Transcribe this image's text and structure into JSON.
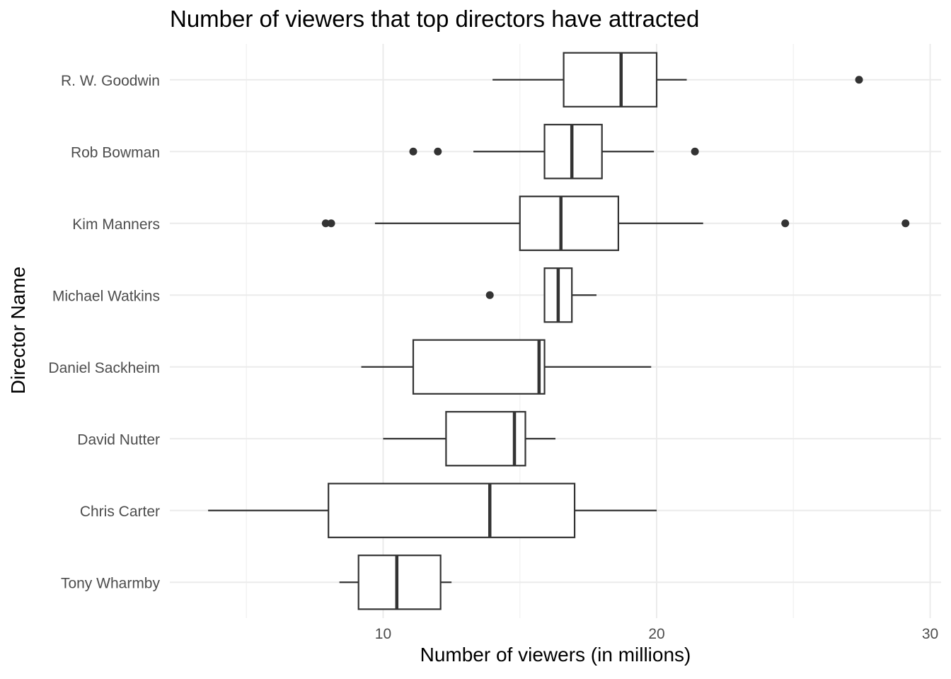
{
  "chart_data": {
    "type": "boxplot",
    "orientation": "horizontal",
    "title": "Number of viewers that top directors have attracted",
    "xlabel": "Number of viewers (in millions)",
    "ylabel": "Director Name",
    "xlim": [
      2.2,
      30.4
    ],
    "x_ticks": [
      10,
      20,
      30
    ],
    "x_minor_ticks": [
      5,
      15,
      25
    ],
    "grid": true,
    "legend": "none",
    "colors": {
      "box_stroke": "#333333",
      "outlier": "#333333",
      "grid_major": "#ebebeb",
      "grid_minor": "#f3f3f3",
      "tick_label": "#4d4d4d"
    },
    "categories": [
      "R. W. Goodwin",
      "Rob Bowman",
      "Kim Manners",
      "Michael Watkins",
      "Daniel Sackheim",
      "David Nutter",
      "Chris Carter",
      "Tony Wharmby"
    ],
    "boxes": [
      {
        "name": "R. W. Goodwin",
        "whisker_low": 14.0,
        "q1": 16.6,
        "median": 18.7,
        "q3": 20.0,
        "whisker_high": 21.1,
        "outliers": [
          27.4
        ]
      },
      {
        "name": "Rob Bowman",
        "whisker_low": 13.3,
        "q1": 15.9,
        "median": 16.9,
        "q3": 18.0,
        "whisker_high": 19.9,
        "outliers": [
          11.1,
          12.0,
          21.4
        ]
      },
      {
        "name": "Kim Manners",
        "whisker_low": 9.7,
        "q1": 15.0,
        "median": 16.5,
        "q3": 18.6,
        "whisker_high": 21.7,
        "outliers": [
          7.9,
          8.1,
          24.7,
          29.1
        ]
      },
      {
        "name": "Michael Watkins",
        "whisker_low": 15.9,
        "q1": 15.9,
        "median": 16.4,
        "q3": 16.9,
        "whisker_high": 17.8,
        "outliers": [
          13.9
        ]
      },
      {
        "name": "Daniel Sackheim",
        "whisker_low": 9.2,
        "q1": 11.1,
        "median": 15.7,
        "q3": 15.9,
        "whisker_high": 19.8,
        "outliers": []
      },
      {
        "name": "David Nutter",
        "whisker_low": 10.0,
        "q1": 12.3,
        "median": 14.8,
        "q3": 15.2,
        "whisker_high": 16.3,
        "outliers": []
      },
      {
        "name": "Chris Carter",
        "whisker_low": 3.6,
        "q1": 8.0,
        "median": 13.9,
        "q3": 17.0,
        "whisker_high": 20.0,
        "outliers": []
      },
      {
        "name": "Tony Wharmby",
        "whisker_low": 8.4,
        "q1": 9.1,
        "median": 10.5,
        "q3": 12.1,
        "whisker_high": 12.5,
        "outliers": []
      }
    ]
  }
}
